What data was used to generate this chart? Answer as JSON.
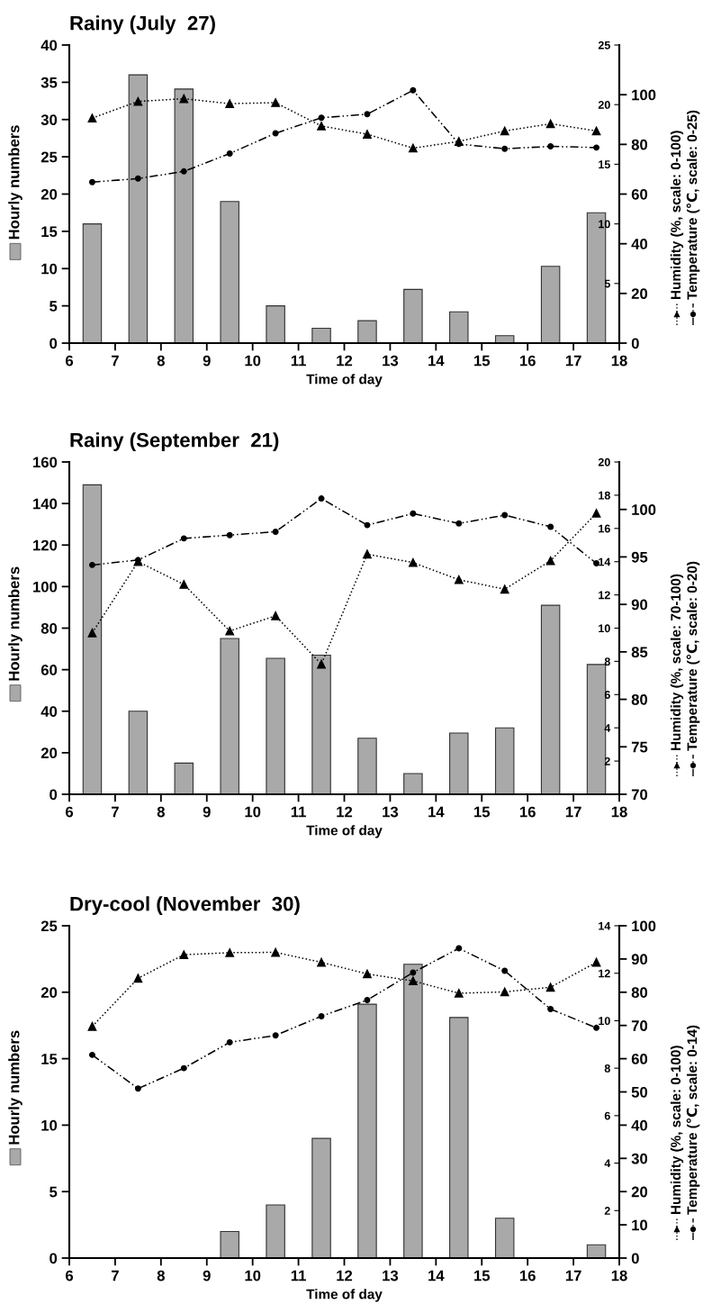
{
  "chart_data": [
    {
      "type": "bar",
      "title": "Rainy (July  27)",
      "xlabel": "Time of day",
      "ylabel": "Hourly numbers",
      "y2label": "Humidity (%, scale: 0-100)",
      "y3label": "Temperature (℃, scale: 0-25)",
      "x": [
        6.5,
        7.5,
        8.5,
        9.5,
        10.5,
        11.5,
        12.5,
        13.5,
        14.5,
        15.5,
        16.5,
        17.5
      ],
      "xlim": [
        6,
        18
      ],
      "xticks": [
        6,
        7,
        8,
        9,
        10,
        11,
        12,
        13,
        14,
        15,
        16,
        17,
        18
      ],
      "ylim": [
        0,
        40
      ],
      "yticks": [
        0,
        5,
        10,
        15,
        20,
        25,
        30,
        35,
        40
      ],
      "y2lim": [
        0,
        120
      ],
      "y2ticks": [
        0,
        20,
        40,
        60,
        80,
        100
      ],
      "y3lim": [
        0,
        25
      ],
      "y3ticks": [
        5,
        10,
        15,
        20,
        25
      ],
      "series": [
        {
          "type": "bar",
          "color": "#a9a9a9",
          "values": [
            16,
            36,
            34.1,
            19,
            5,
            2,
            3,
            7.2,
            4.2,
            1,
            10.3,
            17.5
          ]
        },
        {
          "type": "line",
          "axis": "y2",
          "color": "#000000",
          "marker": "triangle",
          "line_style": "dotted",
          "values": [
            90.6,
            97.3,
            98.4,
            96.4,
            96.8,
            87.4,
            84.1,
            78.5,
            81.2,
            85.4,
            88.3,
            85.4
          ]
        },
        {
          "type": "line",
          "axis": "y3",
          "color": "#000000",
          "marker": "circle",
          "line_style": "dashdot",
          "values": [
            13.5,
            13.8,
            14.4,
            15.9,
            17.6,
            18.9,
            19.2,
            21.2,
            16.7,
            16.3,
            16.5,
            16.4
          ]
        }
      ]
    },
    {
      "type": "bar",
      "title": "Rainy (September  21)",
      "xlabel": "Time of day",
      "ylabel": "Hourly numbers",
      "y2label": "Humidity (%, scale: 70-100)",
      "y3label": "Temperature (℃, scale: 0-20)",
      "x": [
        6.5,
        7.5,
        8.5,
        9.5,
        10.5,
        11.5,
        12.5,
        13.5,
        14.5,
        15.5,
        16.5,
        17.5
      ],
      "xlim": [
        6,
        18
      ],
      "xticks": [
        6,
        7,
        8,
        9,
        10,
        11,
        12,
        13,
        14,
        15,
        16,
        17,
        18
      ],
      "ylim": [
        0,
        160
      ],
      "yticks": [
        0,
        20,
        40,
        60,
        80,
        100,
        120,
        140,
        160
      ],
      "y2lim": [
        70,
        105
      ],
      "y2ticks": [
        70,
        75,
        80,
        85,
        90,
        95,
        100
      ],
      "y3lim": [
        0,
        20
      ],
      "y3ticks": [
        2,
        4,
        6,
        8,
        10,
        12,
        14,
        16,
        18,
        20
      ],
      "series": [
        {
          "type": "bar",
          "color": "#a9a9a9",
          "values": [
            149,
            40,
            15,
            75,
            65.5,
            67,
            27,
            10,
            29.5,
            32,
            91,
            62.5
          ]
        },
        {
          "type": "line",
          "axis": "y2",
          "color": "#000000",
          "marker": "triangle",
          "line_style": "dotted",
          "values": [
            87.0,
            94.5,
            92.1,
            87.2,
            88.8,
            83.7,
            95.3,
            94.4,
            92.6,
            91.6,
            94.6,
            99.6
          ]
        },
        {
          "type": "line",
          "axis": "y3",
          "color": "#000000",
          "marker": "circle",
          "line_style": "dashdot",
          "values": [
            13.8,
            14.1,
            15.4,
            15.6,
            15.8,
            17.8,
            16.2,
            16.9,
            16.3,
            16.8,
            16.1,
            13.9
          ]
        }
      ]
    },
    {
      "type": "bar",
      "title": "Dry-cool (November  30)",
      "xlabel": "Time of day",
      "ylabel": "Hourly numbers",
      "y2label": "Humidity (%, scale: 0-100)",
      "y3label": "Temperature (℃, scale: 0-14)",
      "x": [
        6.5,
        7.5,
        8.5,
        9.5,
        10.5,
        11.5,
        12.5,
        13.5,
        14.5,
        15.5,
        16.5,
        17.5
      ],
      "xlim": [
        6,
        18
      ],
      "xticks": [
        6,
        7,
        8,
        9,
        10,
        11,
        12,
        13,
        14,
        15,
        16,
        17,
        18
      ],
      "ylim": [
        0,
        25
      ],
      "yticks": [
        0,
        5,
        10,
        15,
        20,
        25
      ],
      "y2lim": [
        0,
        100
      ],
      "y2ticks": [
        0,
        10,
        20,
        30,
        40,
        50,
        60,
        70,
        80,
        90,
        100
      ],
      "y3lim": [
        0,
        14
      ],
      "y3ticks": [
        2,
        4,
        6,
        8,
        10,
        12,
        14
      ],
      "series": [
        {
          "type": "bar",
          "color": "#a9a9a9",
          "values": [
            0,
            0,
            0,
            2,
            4,
            9,
            19.1,
            22.1,
            18.1,
            3,
            0,
            1
          ]
        },
        {
          "type": "line",
          "axis": "y2",
          "color": "#000000",
          "marker": "triangle",
          "line_style": "dotted",
          "values": [
            69.7,
            84.2,
            91.3,
            91.9,
            92.0,
            89.0,
            85.5,
            83.4,
            79.7,
            80.1,
            81.5,
            89.0
          ]
        },
        {
          "type": "line",
          "axis": "y3",
          "color": "#000000",
          "marker": "circle",
          "line_style": "dashdot",
          "values": [
            8.56,
            7.14,
            8.0,
            9.09,
            9.38,
            10.19,
            10.87,
            12.03,
            13.05,
            12.1,
            10.49,
            9.7
          ]
        }
      ]
    }
  ]
}
